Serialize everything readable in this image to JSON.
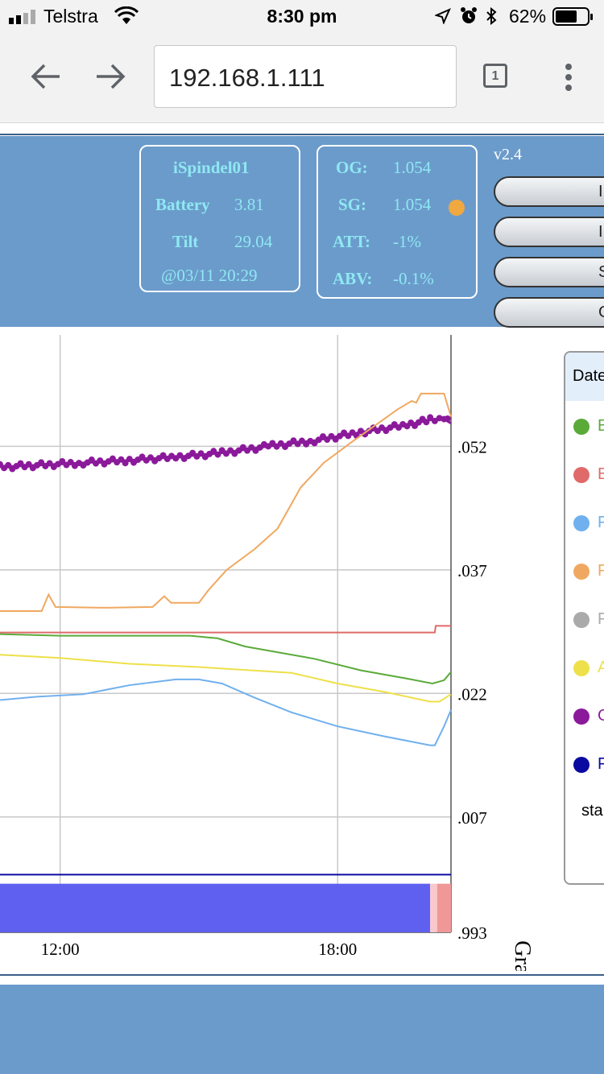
{
  "status_bar": {
    "carrier": "Telstra",
    "time": "8:30 pm",
    "battery_percent": "62%"
  },
  "browser": {
    "url": "192.168.1.111",
    "tab_count": "1"
  },
  "device": {
    "name": "iSpindel01",
    "battery_label": "Battery",
    "battery_value": "3.81",
    "tilt_label": "Tilt",
    "tilt_value": "29.04",
    "timestamp": "@03/11 20:29"
  },
  "readings": {
    "og_label": "OG:",
    "og_value": "1.054",
    "sg_label": "SG:",
    "sg_value": "1.054",
    "att_label": "ATT:",
    "att_value": "-1%",
    "abv_label": "ABV:",
    "abv_value": "-0.1%",
    "status_dot_color": "#f0a840"
  },
  "version": "v2.4",
  "buttons": [
    {
      "label": "I"
    },
    {
      "label": "I"
    },
    {
      "label": "S"
    },
    {
      "label": "G"
    }
  ],
  "chart_data": {
    "type": "line",
    "x_ticks": [
      "12:00",
      "18:00"
    ],
    "y_ticks": [
      ".052",
      ".037",
      ".022",
      ".007",
      ".993"
    ],
    "ylabel": "Gravity",
    "ylim": [
      0.993,
      1.0665
    ],
    "series": [
      {
        "color": "#8b1a9b",
        "style": "dots",
        "values": [
          [
            10.7,
            1.0495
          ],
          [
            11.5,
            1.0497
          ],
          [
            12.5,
            1.05
          ],
          [
            13.5,
            1.0503
          ],
          [
            14.5,
            1.0507
          ],
          [
            15.5,
            1.0512
          ],
          [
            16.5,
            1.052
          ],
          [
            17.5,
            1.0527
          ],
          [
            18.5,
            1.0537
          ],
          [
            19.5,
            1.0546
          ],
          [
            20.0,
            1.0552
          ],
          [
            20.3,
            1.0553
          ],
          [
            20.45,
            1.0548
          ]
        ]
      },
      {
        "color": "#f0a860",
        "style": "line",
        "values": [
          [
            10.7,
            1.032
          ],
          [
            11.6,
            1.032
          ],
          [
            11.75,
            1.034
          ],
          [
            11.9,
            1.0325
          ],
          [
            13.0,
            1.0324
          ],
          [
            14.0,
            1.0325
          ],
          [
            14.25,
            1.0338
          ],
          [
            14.4,
            1.033
          ],
          [
            15.0,
            1.033
          ],
          [
            15.2,
            1.0345
          ],
          [
            15.6,
            1.037
          ],
          [
            16.2,
            1.0395
          ],
          [
            16.7,
            1.042
          ],
          [
            17.2,
            1.047
          ],
          [
            17.7,
            1.05
          ],
          [
            18.3,
            1.0525
          ],
          [
            18.8,
            1.0545
          ],
          [
            19.3,
            1.0565
          ],
          [
            19.6,
            1.0575
          ],
          [
            19.7,
            1.0573
          ],
          [
            19.8,
            1.0584
          ],
          [
            20.0,
            1.0584
          ],
          [
            20.3,
            1.0584
          ],
          [
            20.45,
            1.0556
          ]
        ]
      },
      {
        "color": "#e06a6a",
        "style": "line",
        "values": [
          [
            10.7,
            1.0294
          ],
          [
            20.1,
            1.0294
          ],
          [
            20.12,
            1.0302
          ],
          [
            20.45,
            1.0302
          ]
        ]
      },
      {
        "color": "#5aaa3a",
        "style": "line",
        "values": [
          [
            10.7,
            1.0292
          ],
          [
            12.0,
            1.029
          ],
          [
            14.8,
            1.029
          ],
          [
            15.4,
            1.0287
          ],
          [
            16.0,
            1.0277
          ],
          [
            17.5,
            1.0262
          ],
          [
            18.5,
            1.0248
          ],
          [
            19.5,
            1.0238
          ],
          [
            20.05,
            1.0232
          ],
          [
            20.3,
            1.0236
          ],
          [
            20.45,
            1.0246
          ]
        ]
      },
      {
        "color": "#eee04a",
        "style": "line",
        "values": [
          [
            10.7,
            1.0267
          ],
          [
            12.0,
            1.0263
          ],
          [
            13.5,
            1.0256
          ],
          [
            15.0,
            1.0252
          ],
          [
            17.0,
            1.0245
          ],
          [
            18.0,
            1.0232
          ],
          [
            19.0,
            1.0222
          ],
          [
            20.0,
            1.021
          ],
          [
            20.2,
            1.021
          ],
          [
            20.45,
            1.0219
          ]
        ]
      },
      {
        "color": "#70b0ee",
        "style": "line",
        "values": [
          [
            10.7,
            1.0212
          ],
          [
            11.5,
            1.0216
          ],
          [
            12.5,
            1.0219
          ],
          [
            13.5,
            1.023
          ],
          [
            14.5,
            1.0237
          ],
          [
            15.0,
            1.0237
          ],
          [
            15.5,
            1.0232
          ],
          [
            16.2,
            1.0215
          ],
          [
            17.0,
            1.0197
          ],
          [
            18.0,
            1.018
          ],
          [
            19.0,
            1.0168
          ],
          [
            20.0,
            1.0157
          ],
          [
            20.1,
            1.0157
          ],
          [
            20.3,
            1.018
          ],
          [
            20.45,
            1.02
          ]
        ]
      },
      {
        "color": "#0a0aa0",
        "style": "line",
        "values": [
          [
            10.7,
            1.0
          ],
          [
            20.45,
            1.0
          ]
        ]
      }
    ],
    "bands": [
      {
        "from": 10.7,
        "to": 20.0,
        "color": "#6060f0"
      },
      {
        "from": 20.0,
        "to": 20.15,
        "color": "#f8c8cc"
      },
      {
        "from": 20.15,
        "to": 20.45,
        "color": "#f09898"
      }
    ]
  },
  "legend": {
    "header": "Date",
    "items": [
      {
        "label": "B",
        "color": "#5aaa3a"
      },
      {
        "label": "B",
        "color": "#e06a6a"
      },
      {
        "label": "F",
        "color": "#70b0ee"
      },
      {
        "label": "F",
        "color": "#f0a860"
      },
      {
        "label": "F",
        "color": "#aaaaaa"
      },
      {
        "label": "A",
        "color": "#eee04a"
      },
      {
        "label": "G",
        "color": "#8b1a9b"
      },
      {
        "label": "F",
        "color": "#0a0aa0"
      }
    ],
    "footer_text": "sta"
  }
}
